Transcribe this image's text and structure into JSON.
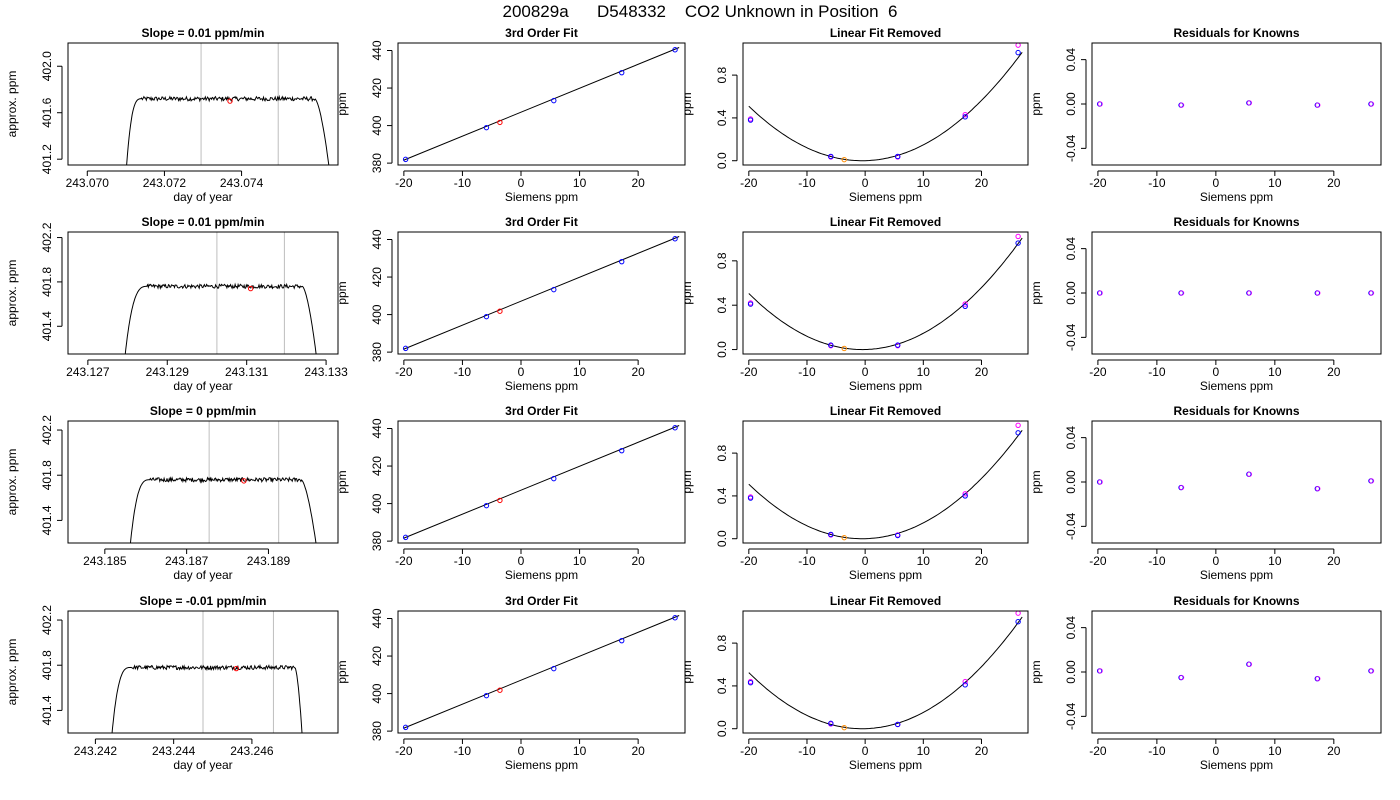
{
  "figure_title": "200829a      D548332    CO2 Unknown in Position  6",
  "colors": {
    "line": "#000000",
    "marker_known": "#0000ff",
    "marker_unknown": "#ff0000",
    "marker_fitted": "#ff00ff",
    "marker_unknown_fit": "#ff8c00",
    "marker_residual": "#8000ff",
    "vline": "#bebebe",
    "axis": "#000000"
  },
  "chart_data": [
    {
      "type": "line",
      "panel": "trace",
      "row": 1,
      "title": "Slope =  0.01  ppm/min",
      "xlabel": "day of year",
      "ylabel": "approx. ppm",
      "xlim": [
        243.0695,
        243.0765
      ],
      "ylim": [
        401.15,
        402.2
      ],
      "xticks": [
        243.07,
        243.072,
        243.074
      ],
      "xticklabels": [
        "243.070",
        "243.072",
        "243.074"
      ],
      "yticks": [
        401.2,
        401.6,
        402.0
      ],
      "yticklabels": [
        "401.2",
        "401.6",
        "402.0"
      ],
      "trace": {
        "start": 243.071,
        "rise_end": 243.0714,
        "plateau_end": 243.0759,
        "end": 243.0763,
        "low": 401.05,
        "level": 401.72,
        "noise": 0.018
      },
      "vlines": [
        243.07295,
        243.07495
      ],
      "marker": {
        "x": 243.0737,
        "y": 401.7
      }
    },
    {
      "type": "line",
      "panel": "fit",
      "row": 1,
      "title": "3rd Order Fit",
      "xlabel": "Siemens ppm",
      "ylabel": "ppm",
      "xlim": [
        -21,
        28
      ],
      "ylim": [
        379,
        444
      ],
      "xticks": [
        -20,
        -10,
        0,
        10,
        20
      ],
      "xticklabels": [
        "-20",
        "-10",
        "0",
        "10",
        "20"
      ],
      "yticks": [
        380,
        400,
        420,
        440
      ],
      "yticklabels": [
        "380",
        "400",
        "420",
        "440"
      ],
      "line": {
        "x": [
          -20,
          27
        ],
        "y": [
          381.6,
          441.6
        ]
      },
      "knowns": {
        "x": [
          -19.7,
          -5.9,
          5.6,
          17.2,
          26.3
        ],
        "y": [
          382.0,
          398.9,
          413.3,
          428.2,
          440.4
        ]
      },
      "unknown": {
        "x": [
          -3.6
        ],
        "y": [
          401.7
        ]
      }
    },
    {
      "type": "line",
      "panel": "linear_removed",
      "row": 1,
      "title": "Linear Fit Removed",
      "xlabel": "Siemens ppm",
      "ylabel": "ppm",
      "xlim": [
        -21,
        28
      ],
      "ylim": [
        -0.04,
        1.1
      ],
      "xticks": [
        -20,
        -10,
        0,
        10,
        20
      ],
      "xticklabels": [
        "-20",
        "-10",
        "0",
        "10",
        "20"
      ],
      "yticks": [
        0.0,
        0.4,
        0.8
      ],
      "yticklabels": [
        "0.0",
        "0.4",
        "0.8"
      ],
      "curve": {
        "a": 0.00134,
        "x0": -0.5,
        "c": 0.0
      },
      "knowns": {
        "x": [
          -19.7,
          -5.9,
          5.6,
          17.2,
          26.3
        ],
        "y": [
          0.38,
          0.04,
          0.04,
          0.41,
          1.01
        ]
      },
      "fitted": {
        "x": [
          -19.7,
          -5.9,
          5.6,
          17.2,
          26.3
        ],
        "y": [
          0.39,
          0.035,
          0.035,
          0.43,
          1.08
        ]
      },
      "unknown": {
        "x": [
          -3.6
        ],
        "y": [
          0.01
        ]
      }
    },
    {
      "type": "scatter",
      "panel": "residuals",
      "row": 1,
      "title": "Residuals for Knowns",
      "xlabel": "Siemens ppm",
      "ylabel": "ppm",
      "xlim": [
        -21,
        28
      ],
      "ylim": [
        -0.055,
        0.055
      ],
      "xticks": [
        -20,
        -10,
        0,
        10,
        20
      ],
      "xticklabels": [
        "-20",
        "-10",
        "0",
        "10",
        "20"
      ],
      "yticks": [
        -0.04,
        0.0,
        0.04
      ],
      "yticklabels": [
        "-0.04",
        "0.00",
        "0.04"
      ],
      "points": {
        "x": [
          -19.7,
          -5.9,
          5.6,
          17.2,
          26.3
        ],
        "y": [
          0.0,
          -0.001,
          0.001,
          -0.001,
          0.0
        ]
      }
    },
    {
      "type": "line",
      "panel": "trace",
      "row": 2,
      "title": "Slope =  0.01  ppm/min",
      "xlabel": "day of year",
      "ylabel": "approx. ppm",
      "xlim": [
        243.1265,
        243.1333
      ],
      "ylim": [
        401.15,
        402.25
      ],
      "xticks": [
        243.127,
        243.129,
        243.131,
        243.133
      ],
      "xticklabels": [
        "243.127",
        "243.129",
        "243.131",
        "243.133"
      ],
      "yticks": [
        401.4,
        401.8,
        402.2
      ],
      "yticklabels": [
        "401.4",
        "401.8",
        "402.2"
      ],
      "trace": {
        "start": 243.1279,
        "rise_end": 243.1285,
        "plateau_end": 243.1324,
        "end": 243.1328,
        "low": 401.0,
        "level": 401.76,
        "noise": 0.018
      },
      "vlines": [
        243.13025,
        243.13195
      ],
      "marker": {
        "x": 243.1311,
        "y": 401.74
      }
    },
    {
      "type": "line",
      "panel": "fit",
      "row": 2,
      "title": "3rd Order Fit",
      "xlabel": "Siemens ppm",
      "ylabel": "ppm",
      "xlim": [
        -21,
        28
      ],
      "ylim": [
        379,
        444
      ],
      "xticks": [
        -20,
        -10,
        0,
        10,
        20
      ],
      "xticklabels": [
        "-20",
        "-10",
        "0",
        "10",
        "20"
      ],
      "yticks": [
        380,
        400,
        420,
        440
      ],
      "yticklabels": [
        "380",
        "400",
        "420",
        "440"
      ],
      "line": {
        "x": [
          -20,
          27
        ],
        "y": [
          381.6,
          441.6
        ]
      },
      "knowns": {
        "x": [
          -19.7,
          -5.9,
          5.6,
          17.2,
          26.3
        ],
        "y": [
          382.0,
          398.9,
          413.3,
          428.2,
          440.4
        ]
      },
      "unknown": {
        "x": [
          -3.6
        ],
        "y": [
          401.8
        ]
      }
    },
    {
      "type": "line",
      "panel": "linear_removed",
      "row": 2,
      "title": "Linear Fit Removed",
      "xlabel": "Siemens ppm",
      "ylabel": "ppm",
      "xlim": [
        -21,
        28
      ],
      "ylim": [
        -0.04,
        1.06
      ],
      "xticks": [
        -20,
        -10,
        0,
        10,
        20
      ],
      "xticklabels": [
        "-20",
        "-10",
        "0",
        "10",
        "20"
      ],
      "yticks": [
        0.0,
        0.4,
        0.8
      ],
      "yticklabels": [
        "0.0",
        "0.4",
        "0.8"
      ],
      "curve": {
        "a": 0.00133,
        "x0": -0.5,
        "c": 0.0
      },
      "knowns": {
        "x": [
          -19.7,
          -5.9,
          5.6,
          17.2,
          26.3
        ],
        "y": [
          0.41,
          0.04,
          0.04,
          0.39,
          0.96
        ]
      },
      "fitted": {
        "x": [
          -19.7,
          -5.9,
          5.6,
          17.2,
          26.3
        ],
        "y": [
          0.42,
          0.035,
          0.035,
          0.41,
          1.02
        ]
      },
      "unknown": {
        "x": [
          -3.6
        ],
        "y": [
          0.01
        ]
      }
    },
    {
      "type": "scatter",
      "panel": "residuals",
      "row": 2,
      "title": "Residuals for Knowns",
      "xlabel": "Siemens ppm",
      "ylabel": "ppm",
      "xlim": [
        -21,
        28
      ],
      "ylim": [
        -0.055,
        0.055
      ],
      "xticks": [
        -20,
        -10,
        0,
        10,
        20
      ],
      "xticklabels": [
        "-20",
        "-10",
        "0",
        "10",
        "20"
      ],
      "yticks": [
        -0.04,
        0.0,
        0.04
      ],
      "yticklabels": [
        "-0.04",
        "0.00",
        "0.04"
      ],
      "points": {
        "x": [
          -19.7,
          -5.9,
          5.6,
          17.2,
          26.3
        ],
        "y": [
          0.0,
          0.0,
          0.0,
          0.0,
          0.0
        ]
      }
    },
    {
      "type": "line",
      "panel": "trace",
      "row": 3,
      "title": "Slope =  0  ppm/min",
      "xlabel": "day of year",
      "ylabel": "approx. ppm",
      "xlim": [
        243.1841,
        243.1907
      ],
      "ylim": [
        401.2,
        402.28
      ],
      "xticks": [
        243.185,
        243.187,
        243.189
      ],
      "xticklabels": [
        "243.185",
        "243.187",
        "243.189"
      ],
      "yticks": [
        401.4,
        401.8,
        402.2
      ],
      "yticklabels": [
        "401.4",
        "401.8",
        "402.2"
      ],
      "trace": {
        "start": 243.1856,
        "rise_end": 243.1861,
        "plateau_end": 243.1898,
        "end": 243.1902,
        "low": 401.1,
        "level": 401.76,
        "noise": 0.018
      },
      "vlines": [
        243.18755,
        243.18925
      ],
      "marker": {
        "x": 243.1884,
        "y": 401.75
      }
    },
    {
      "type": "line",
      "panel": "fit",
      "row": 3,
      "title": "3rd Order Fit",
      "xlabel": "Siemens ppm",
      "ylabel": "ppm",
      "xlim": [
        -21,
        28
      ],
      "ylim": [
        379,
        444
      ],
      "xticks": [
        -20,
        -10,
        0,
        10,
        20
      ],
      "xticklabels": [
        "-20",
        "-10",
        "0",
        "10",
        "20"
      ],
      "yticks": [
        380,
        400,
        420,
        440
      ],
      "yticklabels": [
        "380",
        "400",
        "420",
        "440"
      ],
      "line": {
        "x": [
          -20,
          27
        ],
        "y": [
          381.6,
          441.6
        ]
      },
      "knowns": {
        "x": [
          -19.7,
          -5.9,
          5.6,
          17.2,
          26.3
        ],
        "y": [
          382.0,
          398.9,
          413.3,
          428.2,
          440.4
        ]
      },
      "unknown": {
        "x": [
          -3.6
        ],
        "y": [
          401.7
        ]
      }
    },
    {
      "type": "line",
      "panel": "linear_removed",
      "row": 3,
      "title": "Linear Fit Removed",
      "xlabel": "Siemens ppm",
      "ylabel": "ppm",
      "xlim": [
        -21,
        28
      ],
      "ylim": [
        -0.04,
        1.1
      ],
      "xticks": [
        -20,
        -10,
        0,
        10,
        20
      ],
      "xticklabels": [
        "-20",
        "-10",
        "0",
        "10",
        "20"
      ],
      "yticks": [
        0.0,
        0.4,
        0.8
      ],
      "yticklabels": [
        "0.0",
        "0.4",
        "0.8"
      ],
      "curve": {
        "a": 0.00134,
        "x0": -0.5,
        "c": 0.0
      },
      "knowns": {
        "x": [
          -19.7,
          -5.9,
          5.6,
          17.2,
          26.3
        ],
        "y": [
          0.38,
          0.04,
          0.03,
          0.4,
          0.99
        ]
      },
      "fitted": {
        "x": [
          -19.7,
          -5.9,
          5.6,
          17.2,
          26.3
        ],
        "y": [
          0.39,
          0.035,
          0.035,
          0.42,
          1.06
        ]
      },
      "unknown": {
        "x": [
          -3.6
        ],
        "y": [
          0.01
        ]
      }
    },
    {
      "type": "scatter",
      "panel": "residuals",
      "row": 3,
      "title": "Residuals for Knowns",
      "xlabel": "Siemens ppm",
      "ylabel": "ppm",
      "xlim": [
        -21,
        28
      ],
      "ylim": [
        -0.055,
        0.055
      ],
      "xticks": [
        -20,
        -10,
        0,
        10,
        20
      ],
      "xticklabels": [
        "-20",
        "-10",
        "0",
        "10",
        "20"
      ],
      "yticks": [
        -0.04,
        0.0,
        0.04
      ],
      "yticklabels": [
        "-0.04",
        "0.00",
        "0.04"
      ],
      "points": {
        "x": [
          -19.7,
          -5.9,
          5.6,
          17.2,
          26.3
        ],
        "y": [
          0.0,
          -0.005,
          0.007,
          -0.006,
          0.001
        ]
      }
    },
    {
      "type": "line",
      "panel": "trace",
      "row": 4,
      "title": "Slope =  -0.01  ppm/min",
      "xlabel": "day of year",
      "ylabel": "approx. ppm",
      "xlim": [
        243.2413,
        243.2482
      ],
      "ylim": [
        401.2,
        402.28
      ],
      "xticks": [
        243.242,
        243.244,
        243.246
      ],
      "xticklabels": [
        "243.242",
        "243.244",
        "243.246"
      ],
      "yticks": [
        401.4,
        401.8,
        402.2
      ],
      "yticklabels": [
        "401.4",
        "401.8",
        "402.2"
      ],
      "trace": {
        "start": 243.2424,
        "rise_end": 243.2429,
        "plateau_end": 243.2471,
        "end": 243.2473,
        "low": 401.1,
        "level": 401.78,
        "noise": 0.018
      },
      "vlines": [
        243.24475,
        243.24655
      ],
      "marker": {
        "x": 243.2456,
        "y": 401.77
      }
    },
    {
      "type": "line",
      "panel": "fit",
      "row": 4,
      "title": "3rd Order Fit",
      "xlabel": "Siemens ppm",
      "ylabel": "ppm",
      "xlim": [
        -21,
        28
      ],
      "ylim": [
        379,
        444
      ],
      "xticks": [
        -20,
        -10,
        0,
        10,
        20
      ],
      "xticklabels": [
        "-20",
        "-10",
        "0",
        "10",
        "20"
      ],
      "yticks": [
        380,
        400,
        420,
        440
      ],
      "yticklabels": [
        "380",
        "400",
        "420",
        "440"
      ],
      "line": {
        "x": [
          -20,
          27
        ],
        "y": [
          381.6,
          441.6
        ]
      },
      "knowns": {
        "x": [
          -19.7,
          -5.9,
          5.6,
          17.2,
          26.3
        ],
        "y": [
          382.0,
          398.9,
          413.3,
          428.2,
          440.4
        ]
      },
      "unknown": {
        "x": [
          -3.6
        ],
        "y": [
          401.8
        ]
      }
    },
    {
      "type": "line",
      "panel": "linear_removed",
      "row": 4,
      "title": "Linear Fit Removed",
      "xlabel": "Siemens ppm",
      "ylabel": "ppm",
      "xlim": [
        -21,
        28
      ],
      "ylim": [
        -0.04,
        1.1
      ],
      "xticks": [
        -20,
        -10,
        0,
        10,
        20
      ],
      "xticklabels": [
        "-20",
        "-10",
        "0",
        "10",
        "20"
      ],
      "yticks": [
        0.0,
        0.4,
        0.8
      ],
      "yticklabels": [
        "0.0",
        "0.4",
        "0.8"
      ],
      "curve": {
        "a": 0.00138,
        "x0": -0.5,
        "c": 0.0
      },
      "knowns": {
        "x": [
          -19.7,
          -5.9,
          5.6,
          17.2,
          26.3
        ],
        "y": [
          0.43,
          0.05,
          0.04,
          0.41,
          1.0
        ]
      },
      "fitted": {
        "x": [
          -19.7,
          -5.9,
          5.6,
          17.2,
          26.3
        ],
        "y": [
          0.44,
          0.045,
          0.04,
          0.44,
          1.08
        ]
      },
      "unknown": {
        "x": [
          -3.6
        ],
        "y": [
          0.01
        ]
      }
    },
    {
      "type": "scatter",
      "panel": "residuals",
      "row": 4,
      "title": "Residuals for Knowns",
      "xlabel": "Siemens ppm",
      "ylabel": "ppm",
      "xlim": [
        -21,
        28
      ],
      "ylim": [
        -0.055,
        0.055
      ],
      "xticks": [
        -20,
        -10,
        0,
        10,
        20
      ],
      "xticklabels": [
        "-20",
        "-10",
        "0",
        "10",
        "20"
      ],
      "yticks": [
        -0.04,
        0.0,
        0.04
      ],
      "yticklabels": [
        "-0.04",
        "0.00",
        "0.04"
      ],
      "points": {
        "x": [
          -19.7,
          -5.9,
          5.6,
          17.2,
          26.3
        ],
        "y": [
          0.001,
          -0.005,
          0.007,
          -0.006,
          0.001
        ]
      }
    }
  ]
}
